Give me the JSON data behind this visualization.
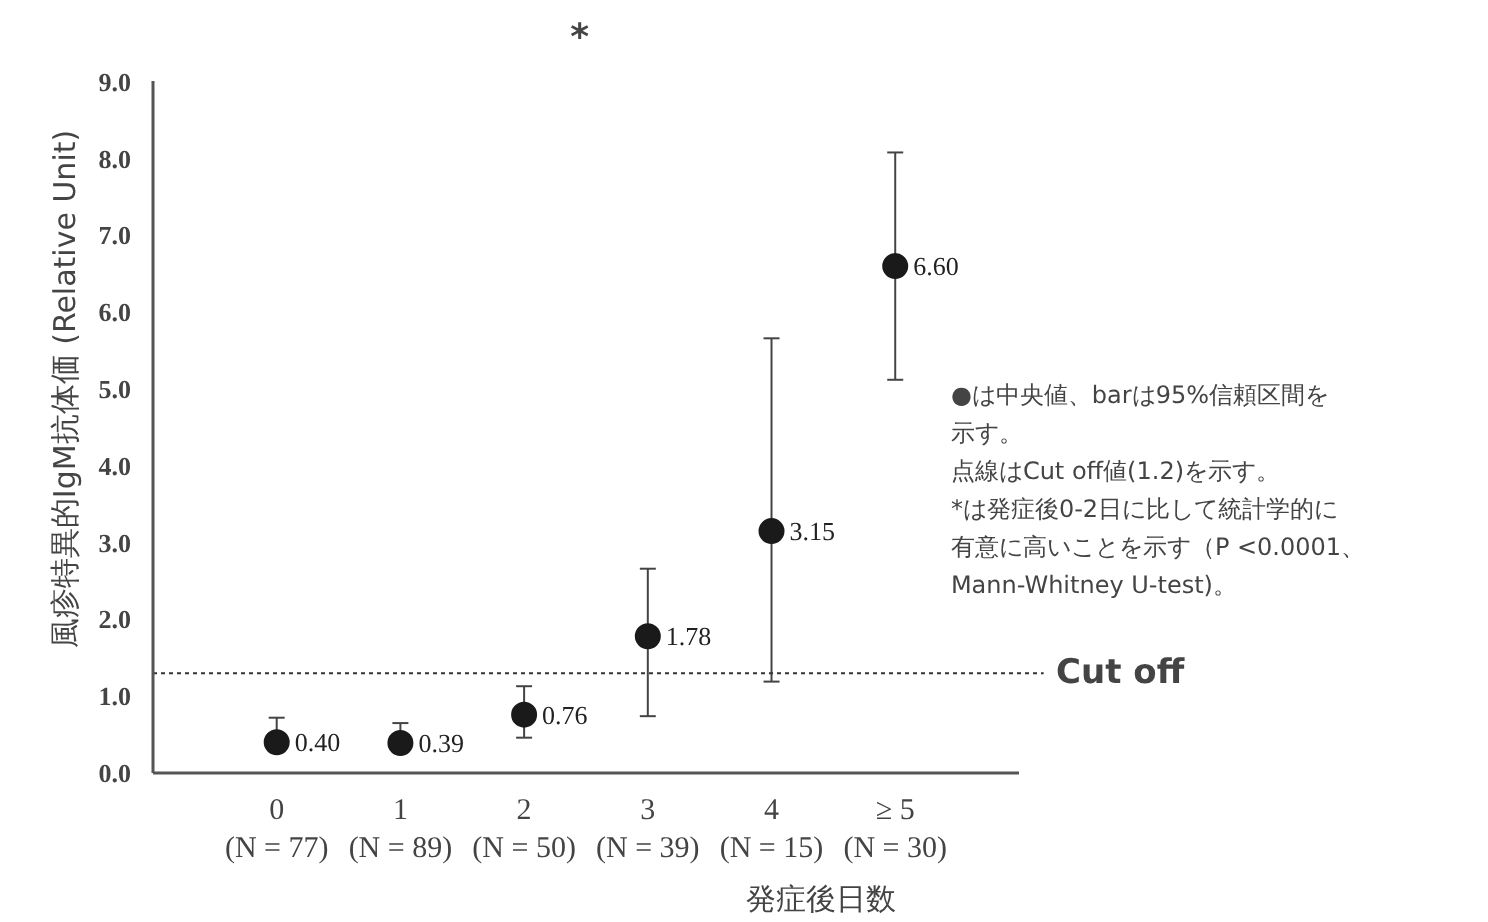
{
  "chart_data": {
    "type": "scatter",
    "xlabel": "発症後日数",
    "ylabel": "風疹特異的IgM抗体価 (Relative Unit)",
    "categories": [
      "0\n(N = 77)",
      "1\n(N = 89)",
      "2\n(N = 50)",
      "3\n(N = 39)",
      "4\n(N = 15)",
      "≥ 5\n(N = 30)"
    ],
    "series": [
      {
        "color": "#1a1a1a",
        "values": [
          0.4,
          0.39,
          0.76,
          1.78,
          3.15,
          6.6
        ],
        "value_labels": [
          "0.40",
          "0.39",
          "0.76",
          "1.78",
          "3.15",
          "6.60"
        ],
        "errors": [
          [
            0.4,
            0.72
          ],
          [
            0.39,
            0.65
          ],
          [
            0.46,
            1.13
          ],
          [
            0.74,
            2.66
          ],
          [
            1.19,
            5.66
          ],
          [
            5.12,
            8.08
          ]
        ]
      }
    ],
    "marker": "circle",
    "ylim": [
      0,
      9.0
    ],
    "yticks": [
      {
        "value": 0,
        "label": "0.0"
      },
      {
        "value": 1,
        "label": "1.0"
      },
      {
        "value": 2,
        "label": "2.0"
      },
      {
        "value": 3,
        "label": "3.0"
      },
      {
        "value": 4,
        "label": "4.0"
      },
      {
        "value": 5,
        "label": "5.0"
      },
      {
        "value": 6,
        "label": "6.0"
      },
      {
        "value": 7,
        "label": "7.0"
      },
      {
        "value": 8,
        "label": "8.0"
      },
      {
        "value": 9,
        "label": "9.0"
      }
    ],
    "ref_lines": [
      {
        "axis": "y",
        "value": 1.3,
        "label": "Cut off",
        "line_style": "dotted",
        "color": "#333333"
      }
    ],
    "annotations": [
      "*",
      "●は中央値、barは95%信頼区間を示す。",
      "点線はCut off値(1.2)を示す。",
      "*は発症後0-2日に比して統計学的に有意に高いことを示す（P <0.0001、Mann-Whitney U-test)。"
    ],
    "grid": false
  }
}
